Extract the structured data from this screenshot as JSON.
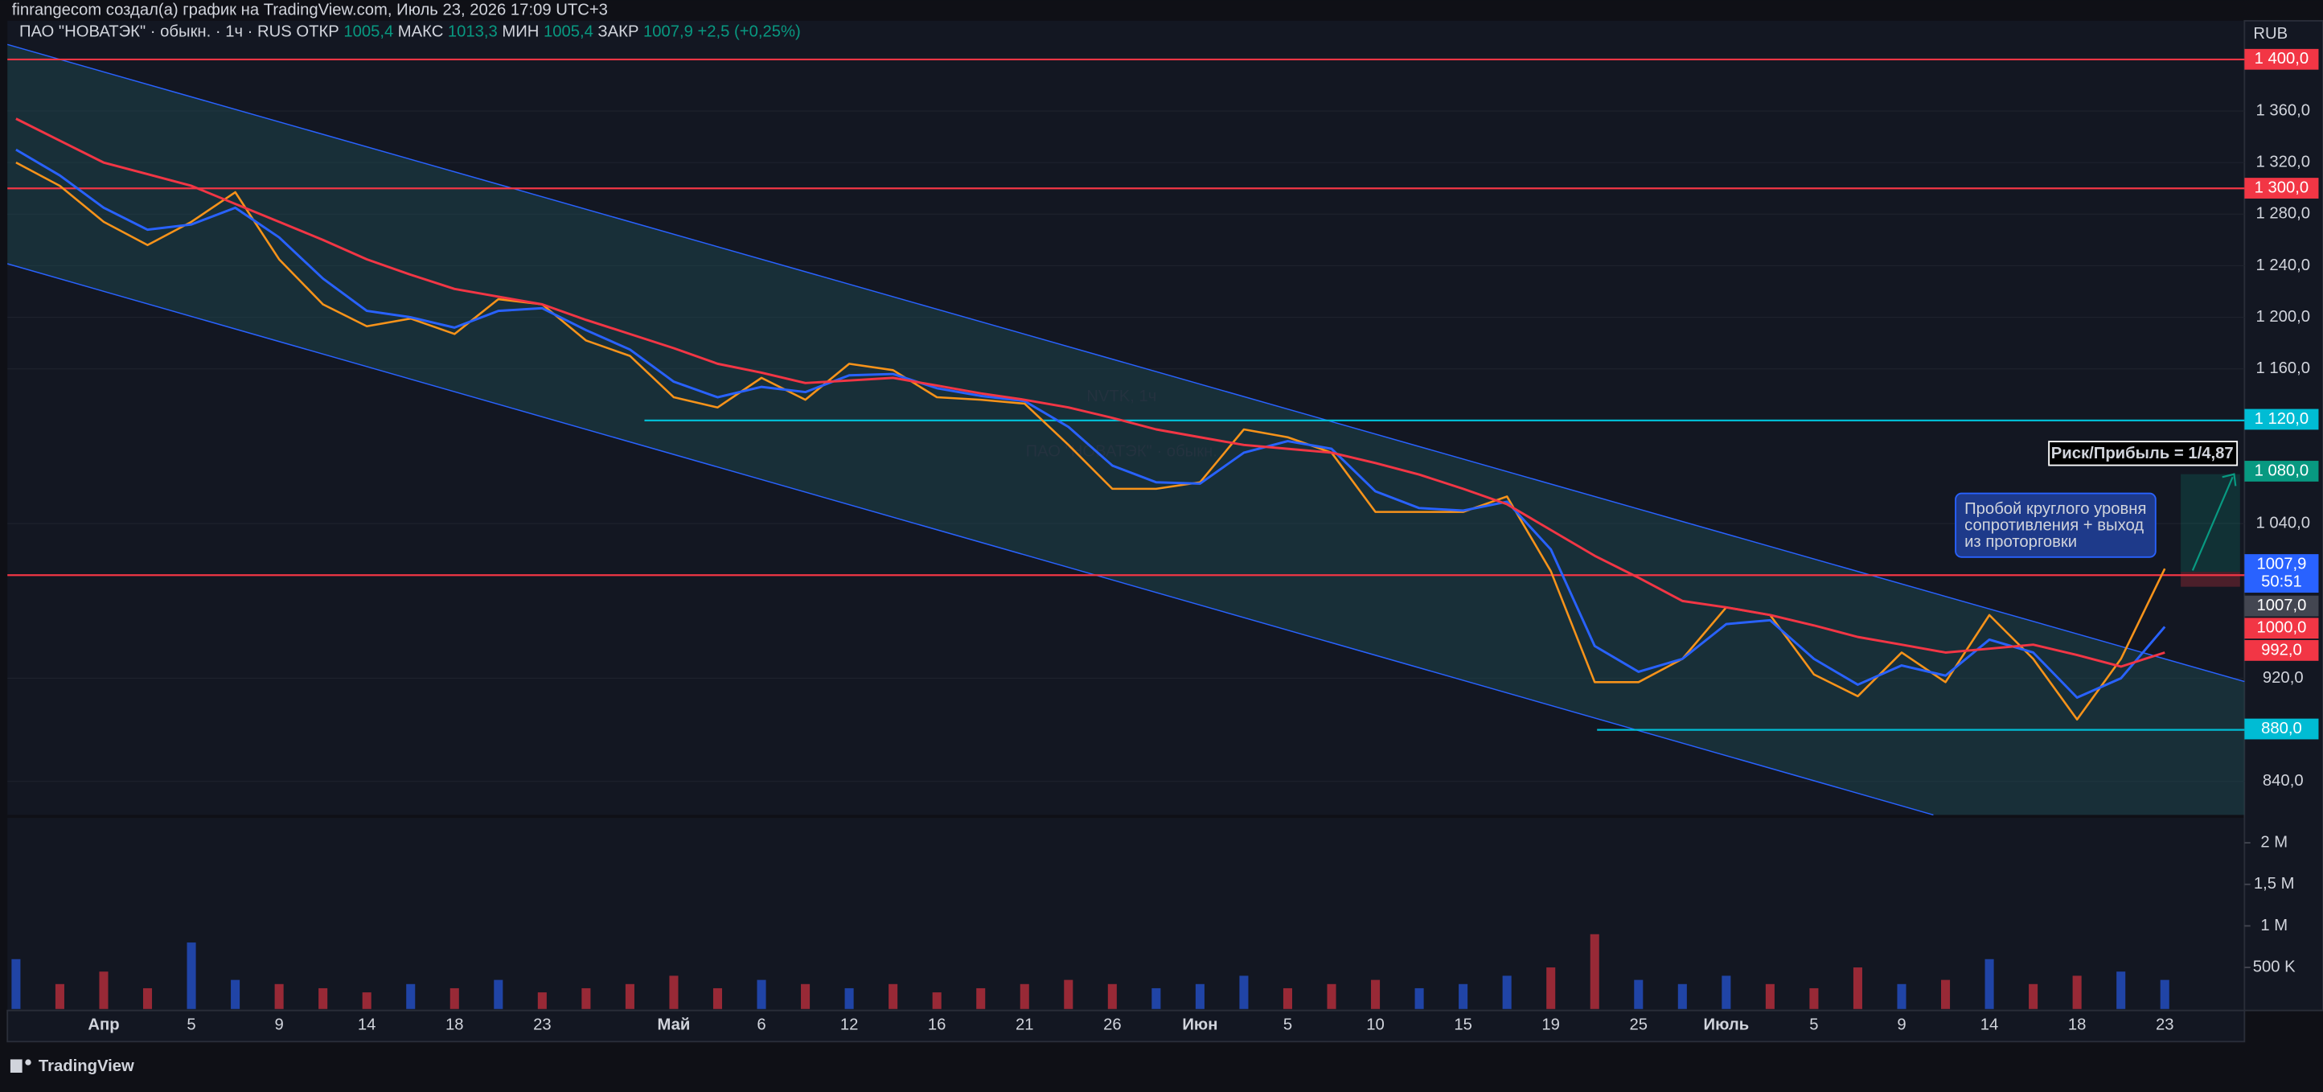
{
  "header": {
    "text": "finrangecom создал(а) график на TradingView.com, Июль 23, 2026 17:09 UTC+3",
    "currency": "RUB"
  },
  "chart_data": [
    {
      "type": "line",
      "legend": {
        "symbol": "ПАО \"НОВАТЭК\" · обыкн. · 1ч · RUS",
        "ohlc": [
          {
            "label": "ОТКР",
            "value": "1005,4"
          },
          {
            "label": "МАКС",
            "value": "1013,3"
          },
          {
            "label": "МИН",
            "value": "1005,4"
          },
          {
            "label": "ЗАКР",
            "value": "1007,9"
          }
        ],
        "change": "+2,5 (+0,25%)"
      },
      "watermark": {
        "ticker": "NVTK, 1ч",
        "name": "ПАО \"НОВАТЭК\" · обыкн."
      },
      "categories": [
        null,
        null,
        "Апр",
        null,
        "5",
        null,
        "9",
        null,
        "14",
        null,
        "18",
        null,
        "23",
        null,
        null,
        "Май",
        null,
        "6",
        null,
        "12",
        null,
        "16",
        null,
        "21",
        null,
        "26",
        null,
        "Июн",
        null,
        "5",
        null,
        "10",
        null,
        "15",
        null,
        "19",
        null,
        "25",
        null,
        "Июль",
        null,
        "5",
        null,
        "9",
        null,
        "14",
        null,
        "18",
        null,
        "23"
      ],
      "series": [
        {
          "color": "#f7931a",
          "values": [
            1320,
            1302,
            1274,
            1256,
            1274,
            1297,
            1245,
            1210,
            1193,
            1199,
            1187,
            1214,
            1210,
            1182,
            1170,
            1138,
            1130,
            1153,
            1136,
            1164,
            1159,
            1138,
            1136,
            1133,
            1101,
            1067,
            1067,
            1072,
            1113,
            1107,
            1095,
            1049,
            1049,
            1049,
            1061,
            1003,
            917,
            917,
            935,
            975,
            969,
            923,
            906,
            940,
            917,
            969,
            935,
            888,
            935,
            1005
          ]
        },
        {
          "color": "#2962ff",
          "values": [
            1330,
            1310,
            1285,
            1268,
            1272,
            1285,
            1262,
            1230,
            1205,
            1200,
            1192,
            1205,
            1207,
            1190,
            1175,
            1150,
            1138,
            1146,
            1142,
            1155,
            1156,
            1145,
            1139,
            1135,
            1115,
            1085,
            1072,
            1071,
            1095,
            1104,
            1098,
            1065,
            1052,
            1050,
            1057,
            1020,
            945,
            925,
            935,
            962,
            965,
            935,
            915,
            930,
            922,
            950,
            940,
            905,
            920,
            960
          ]
        },
        {
          "color": "#f23645",
          "values": [
            1354,
            1337,
            1320,
            1311,
            1302,
            1288,
            1274,
            1260,
            1245,
            1233,
            1222,
            1216,
            1210,
            1198,
            1187,
            1176,
            1164,
            1157,
            1149,
            1151,
            1153,
            1147,
            1141,
            1136,
            1130,
            1122,
            1113,
            1107,
            1101,
            1098,
            1095,
            1087,
            1078,
            1067,
            1055,
            1035,
            1015,
            998,
            980,
            975,
            969,
            961,
            952,
            946,
            940,
            943,
            946,
            938,
            929,
            940
          ]
        }
      ],
      "ylim": [
        814,
        1430
      ],
      "yticks": [
        {
          "value": 1360,
          "label": "1 360,0"
        },
        {
          "value": 1320,
          "label": "1 320,0"
        },
        {
          "value": 1280,
          "label": "1 280,0"
        },
        {
          "value": 1240,
          "label": "1 240,0"
        },
        {
          "value": 1200,
          "label": "1 200,0"
        },
        {
          "value": 1160,
          "label": "1 160,0"
        },
        {
          "value": 1040,
          "label": "1 040,0"
        },
        {
          "value": 920,
          "label": "920,0"
        },
        {
          "value": 840,
          "label": "840,0"
        }
      ],
      "grid": true,
      "levels": [
        {
          "value": 1400,
          "color": "#f23645"
        },
        {
          "value": 1300,
          "color": "#f23645"
        },
        {
          "value": 1120,
          "color": "#00bcd4"
        },
        {
          "value": 1000,
          "color": "#f23645"
        },
        {
          "value": 880,
          "color": "#00bcd4"
        }
      ],
      "price_labels": [
        {
          "value": 1400,
          "label": "1 400,0",
          "color": "#f23645"
        },
        {
          "value": 1300,
          "label": "1 300,0",
          "color": "#f23645"
        },
        {
          "value": 1120,
          "label": "1 120,0",
          "color": "#00bcd4"
        },
        {
          "value": 1080,
          "label": "1 080,0",
          "color": "#089981"
        },
        {
          "value": 1007.9,
          "label": "1007,9",
          "sub": "50:51",
          "color": "#2962ff"
        },
        {
          "value": 1007,
          "label": "1007,0",
          "color": "#434651"
        },
        {
          "value": 1000,
          "label": "1000,0",
          "color": "#f23645"
        },
        {
          "value": 992,
          "label": "992,0",
          "color": "#f23645"
        },
        {
          "value": 880,
          "label": "880,0",
          "color": "#00bcd4"
        }
      ],
      "annotations": [
        {
          "text": "Риск/Прибыль = 1/4,87"
        },
        {
          "lines": [
            "Пробой круглого уровня",
            "сопротивления + выход",
            "из проторговки"
          ]
        }
      ]
    },
    {
      "type": "bar",
      "color": "#2962ff",
      "values": [
        600000,
        300000,
        450000,
        250000,
        800000,
        350000,
        300000,
        250000,
        200000,
        300000,
        250000,
        350000,
        200000,
        250000,
        300000,
        400000,
        250000,
        350000,
        300000,
        250000,
        300000,
        200000,
        250000,
        300000,
        350000,
        300000,
        250000,
        300000,
        400000,
        250000,
        300000,
        350000,
        250000,
        300000,
        400000,
        500000,
        900000,
        350000,
        300000,
        400000,
        300000,
        250000,
        500000,
        300000,
        350000,
        600000,
        300000,
        400000,
        450000,
        350000
      ],
      "ylim": [
        0,
        2300000
      ],
      "yticks": [
        {
          "value": 2000000,
          "label": "2 M"
        },
        {
          "value": 1500000,
          "label": "1,5 M"
        },
        {
          "value": 1000000,
          "label": "1 M"
        },
        {
          "value": 500000,
          "label": "500 K"
        }
      ]
    }
  ],
  "footer": {
    "brand": "TradingView"
  }
}
